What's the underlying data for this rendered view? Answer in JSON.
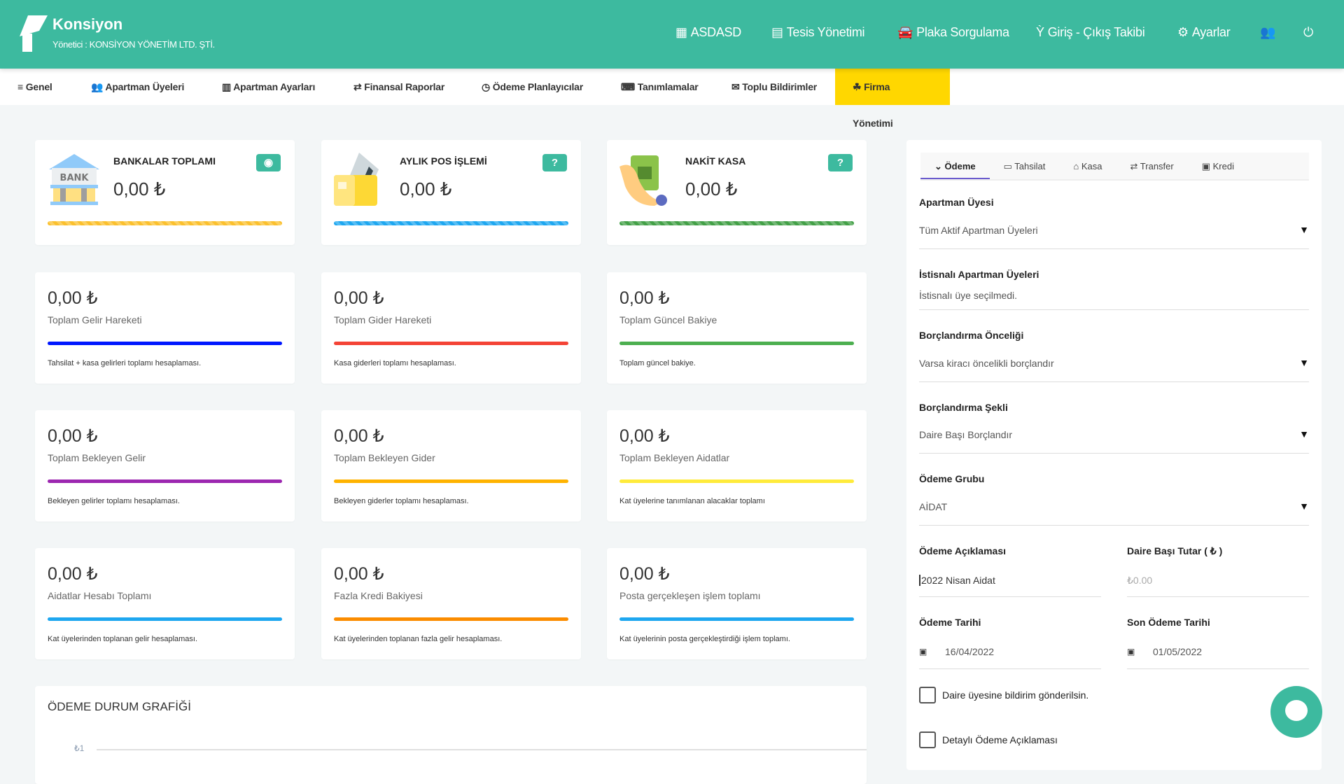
{
  "header": {
    "brand": "Konsiyon",
    "subtitle": "Yönetici : KONSİYON YÖNETİM LTD. ŞTİ.",
    "nav": [
      {
        "label": "ASDASD",
        "icon": "building-icon"
      },
      {
        "label": "Tesis Yönetimi",
        "icon": "id-card-icon"
      },
      {
        "label": "Plaka Sorgulama",
        "icon": "car-icon"
      },
      {
        "label": "Giriş - Çıkış Takibi",
        "icon": "person-icon"
      },
      {
        "label": "Ayarlar",
        "icon": "gear-icon"
      }
    ]
  },
  "subnav": [
    {
      "label": "Genel",
      "icon": "≡"
    },
    {
      "label": "Apartman Üyeleri",
      "icon": "👥"
    },
    {
      "label": "Apartman Ayarları",
      "icon": "▥"
    },
    {
      "label": "Finansal Raporlar",
      "icon": "⇄"
    },
    {
      "label": "Ödeme Planlayıcılar",
      "icon": "◷"
    },
    {
      "label": "Tanımlamalar",
      "icon": "⌨"
    },
    {
      "label": "Toplu Bildirimler",
      "icon": "✉"
    },
    {
      "label": "Firma Yönetimi",
      "icon": "☘",
      "active": true
    }
  ],
  "top_cards": [
    {
      "title": "BANKALAR TOPLAMI",
      "value": "0,00 ₺",
      "badge": "eye-icon",
      "bar_color": "#fbc02d"
    },
    {
      "title": "AYLIK POS İŞLEMİ",
      "value": "0,00 ₺",
      "badge": "question-icon",
      "bar_color": "#1ea7f0"
    },
    {
      "title": "NAKİT KASA",
      "value": "0,00 ₺",
      "badge": "question-icon",
      "bar_color": "#43a047"
    }
  ],
  "stat_cards": [
    {
      "value": "0,00 ₺",
      "label": "Toplam Gelir Hareketi",
      "desc": "Tahsilat + kasa gelirleri toplamı hesaplaması.",
      "color": "#0017ff"
    },
    {
      "value": "0,00 ₺",
      "label": "Toplam Gider Hareketi",
      "desc": "Kasa giderleri toplamı hesaplaması.",
      "color": "#f44336"
    },
    {
      "value": "0,00 ₺",
      "label": "Toplam Güncel Bakiye",
      "desc": "Toplam güncel bakiye.",
      "color": "#4caf50"
    },
    {
      "value": "0,00 ₺",
      "label": "Toplam Bekleyen Gelir",
      "desc": "Bekleyen gelirler toplamı hesaplaması.",
      "color": "#9c27b0"
    },
    {
      "value": "0,00 ₺",
      "label": "Toplam Bekleyen Gider",
      "desc": "Bekleyen giderler toplamı hesaplaması.",
      "color": "#ffb300"
    },
    {
      "value": "0,00 ₺",
      "label": "Toplam Bekleyen Aidatlar",
      "desc": "Kat üyelerine tanımlanan alacaklar toplamı",
      "color": "#ffeb3b"
    },
    {
      "value": "0,00 ₺",
      "label": "Aidatlar Hesabı Toplamı",
      "desc": "Kat üyelerinden toplanan gelir hesaplaması.",
      "color": "#1ea7f0"
    },
    {
      "value": "0,00 ₺",
      "label": "Fazla Kredi Bakiyesi",
      "desc": "Kat üyelerinden toplanan fazla gelir hesaplaması.",
      "color": "#fb8c00"
    },
    {
      "value": "0,00 ₺",
      "label": "Posta gerçekleşen işlem toplamı",
      "desc": "Kat üyelerinin posta gerçekleştirdiği işlem toplamı.",
      "color": "#1ea7f0"
    }
  ],
  "chart": {
    "title": "ÖDEME DURUM GRAFİĞİ",
    "y_tick": "₺1"
  },
  "panel": {
    "tabs": [
      {
        "label": "Ödeme",
        "icon": "»"
      },
      {
        "label": "Tahsilat",
        "icon": "▭"
      },
      {
        "label": "Kasa",
        "icon": "🏛"
      },
      {
        "label": "Transfer",
        "icon": "⇄"
      },
      {
        "label": "Kredi",
        "icon": "▣"
      }
    ],
    "apartman_uyesi": {
      "label": "Apartman Üyesi",
      "value": "Tüm Aktif Apartman Üyeleri"
    },
    "istisnali": {
      "label": "İstisnalı Apartman Üyeleri",
      "value": "İstisnalı üye seçilmedi."
    },
    "oncelik": {
      "label": "Borçlandırma Önceliği",
      "value": "Varsa kiracı öncelikli borçlandır"
    },
    "sekil": {
      "label": "Borçlandırma Şekli",
      "value": "Daire Başı Borçlandır"
    },
    "grup": {
      "label": "Ödeme Grubu",
      "value": "AİDAT"
    },
    "aciklama": {
      "label": "Ödeme Açıklaması",
      "value": "2022 Nisan Aidat"
    },
    "tutar": {
      "label": "Daire Başı Tutar ( ₺ )",
      "placeholder": "₺0.00"
    },
    "tarih": {
      "label": "Ödeme Tarihi",
      "value": "16/04/2022"
    },
    "son_tarih": {
      "label": "Son Ödeme Tarihi",
      "value": "01/05/2022"
    },
    "check1": "Daire üyesine bildirim gönderilsin.",
    "check2": "Detaylı Ödeme Açıklaması"
  },
  "colors": {
    "brand": "#3dba9f",
    "active_tab": "#ffd700"
  }
}
